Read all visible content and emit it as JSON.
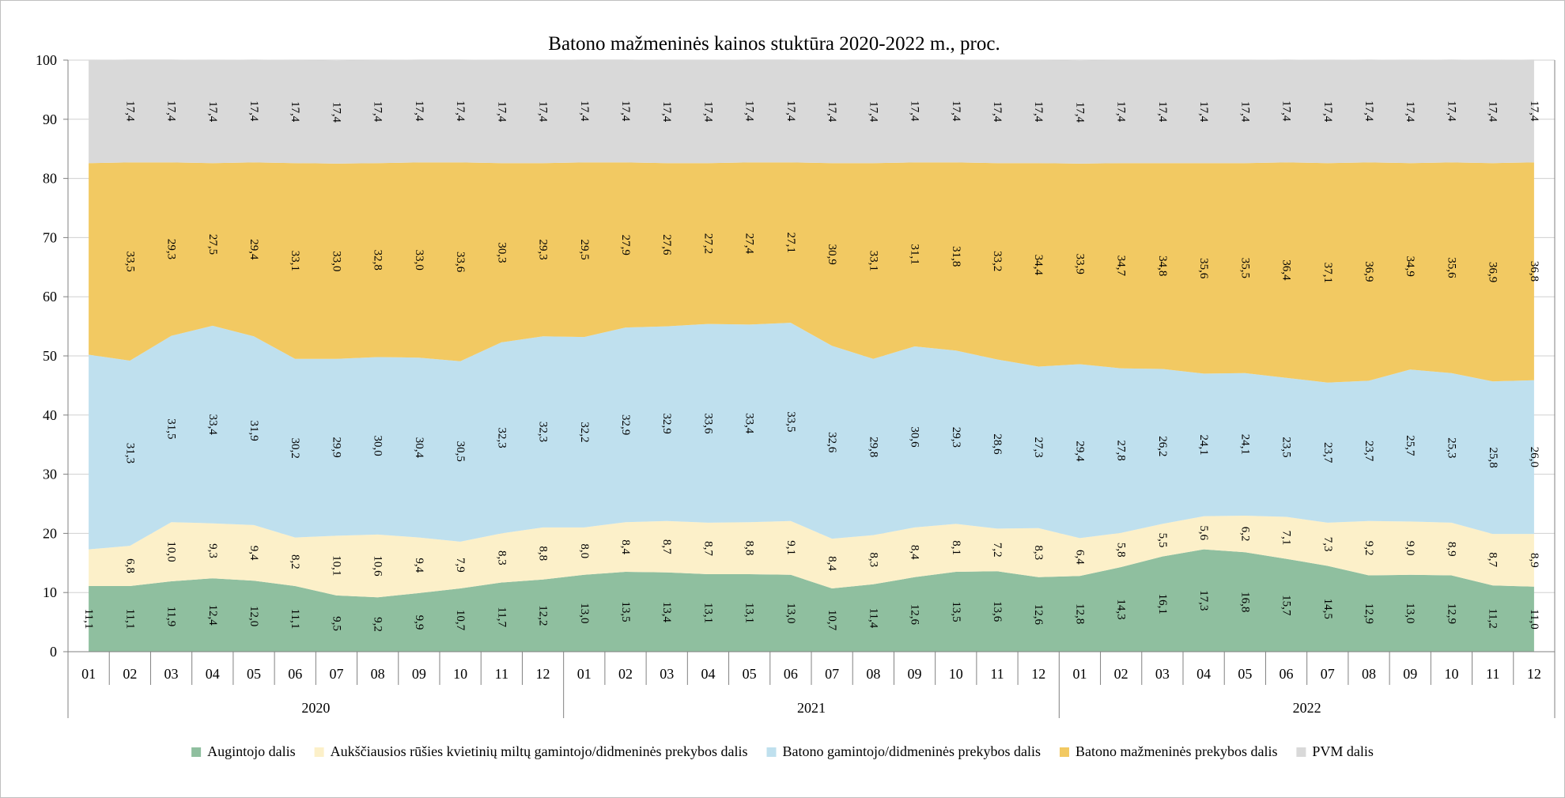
{
  "chart_data": {
    "type": "area",
    "stacked": true,
    "title": "Batono mažmeninės kainos stuktūra 2020-2022 m., proc.",
    "xlabel": "",
    "ylabel": "",
    "ylim": [
      0,
      100
    ],
    "yticks": [
      "0",
      "10",
      "20",
      "30",
      "40",
      "50",
      "60",
      "70",
      "80",
      "90",
      "100"
    ],
    "grid": true,
    "legend_position": "bottom",
    "months": [
      "01",
      "02",
      "03",
      "04",
      "05",
      "06",
      "07",
      "08",
      "09",
      "10",
      "11",
      "12",
      "01",
      "02",
      "03",
      "04",
      "05",
      "06",
      "07",
      "08",
      "09",
      "10",
      "11",
      "12",
      "01",
      "02",
      "03",
      "04",
      "05",
      "06",
      "07",
      "08",
      "09",
      "10",
      "11",
      "12"
    ],
    "years": [
      "2020",
      "2021",
      "2022"
    ],
    "series": [
      {
        "name": "Augintojo dalis",
        "color": "#8fbf9f",
        "values": [
          11.1,
          11.1,
          11.9,
          12.4,
          12.0,
          11.1,
          9.5,
          9.2,
          9.9,
          10.7,
          11.7,
          12.2,
          13.0,
          13.5,
          13.4,
          13.1,
          13.1,
          13.0,
          10.7,
          11.4,
          12.6,
          13.5,
          13.6,
          12.6,
          12.8,
          14.3,
          16.1,
          17.3,
          16.8,
          15.7,
          14.5,
          12.9,
          13.0,
          12.9,
          11.2,
          11.0
        ],
        "labels": [
          "11,1",
          "11,1",
          "11,9",
          "12,4",
          "12,0",
          "11,1",
          "9,5",
          "9,2",
          "9,9",
          "10,7",
          "11,7",
          "12,2",
          "13,0",
          "13,5",
          "13,4",
          "13,1",
          "13,1",
          "13,0",
          "10,7",
          "11,4",
          "12,6",
          "13,5",
          "13,6",
          "12,6",
          "12,8",
          "14,3",
          "16,1",
          "17,3",
          "16,8",
          "15,7",
          "14,5",
          "12,9",
          "13,0",
          "12,9",
          "11,2",
          "11,0"
        ]
      },
      {
        "name": "Aukščiausios rūšies kvietinių miltų gamintojo/didmeninės prekybos dalis",
        "color": "#fcf0c9",
        "values": [
          6.2,
          6.8,
          10.0,
          9.3,
          9.4,
          8.2,
          10.1,
          10.6,
          9.4,
          7.9,
          8.3,
          8.8,
          8.0,
          8.4,
          8.7,
          8.7,
          8.8,
          9.1,
          8.4,
          8.3,
          8.4,
          8.1,
          7.2,
          8.3,
          6.4,
          5.8,
          5.5,
          5.6,
          6.2,
          7.1,
          7.3,
          9.2,
          9.0,
          8.9,
          8.7,
          8.9
        ],
        "labels": [
          "",
          "6,8",
          "10,0",
          "9,3",
          "9,4",
          "8,2",
          "10,1",
          "10,6",
          "9,4",
          "7,9",
          "8,3",
          "8,8",
          "8,0",
          "8,4",
          "8,7",
          "8,7",
          "8,8",
          "9,1",
          "8,4",
          "8,3",
          "8,4",
          "8,1",
          "7,2",
          "8,3",
          "6,4",
          "5,8",
          "5,5",
          "5,6",
          "6,2",
          "7,1",
          "7,3",
          "9,2",
          "9,0",
          "8,9",
          "8,7",
          "8,9"
        ]
      },
      {
        "name": "Batono gamintojo/didmeninės prekybos dalis",
        "color": "#bfe0ee",
        "values": [
          32.9,
          31.3,
          31.5,
          33.4,
          31.9,
          30.2,
          29.9,
          30.0,
          30.4,
          30.5,
          32.3,
          32.3,
          32.2,
          32.9,
          32.9,
          33.6,
          33.4,
          33.5,
          32.6,
          29.8,
          30.6,
          29.3,
          28.6,
          27.3,
          29.4,
          27.8,
          26.2,
          24.1,
          24.1,
          23.5,
          23.7,
          23.7,
          25.7,
          25.3,
          25.8,
          26.0
        ],
        "labels": [
          "",
          "31,3",
          "31,5",
          "33,4",
          "31,9",
          "30,2",
          "29,9",
          "30,0",
          "30,4",
          "30,5",
          "32,3",
          "32,3",
          "32,2",
          "32,9",
          "32,9",
          "33,6",
          "33,4",
          "33,5",
          "32,6",
          "29,8",
          "30,6",
          "29,3",
          "28,6",
          "27,3",
          "29,4",
          "27,8",
          "26,2",
          "24,1",
          "24,1",
          "23,5",
          "23,7",
          "23,7",
          "25,7",
          "25,3",
          "25,8",
          "26,0"
        ]
      },
      {
        "name": "Batono mažmeninės prekybos dalis",
        "color": "#f2c962",
        "values": [
          32.4,
          33.5,
          29.3,
          27.5,
          29.4,
          33.1,
          33.0,
          32.8,
          33.0,
          33.6,
          30.3,
          29.3,
          29.5,
          27.9,
          27.6,
          27.2,
          27.4,
          27.1,
          30.9,
          33.1,
          31.1,
          31.8,
          33.2,
          34.4,
          33.9,
          34.7,
          34.8,
          35.6,
          35.5,
          36.4,
          37.1,
          36.9,
          34.9,
          35.6,
          36.9,
          36.8
        ],
        "labels": [
          "",
          "33,5",
          "29,3",
          "27,5",
          "29,4",
          "33,1",
          "33,0",
          "32,8",
          "33,0",
          "33,6",
          "30,3",
          "29,3",
          "29,5",
          "27,9",
          "27,6",
          "27,2",
          "27,4",
          "27,1",
          "30,9",
          "33,1",
          "31,1",
          "31,8",
          "33,2",
          "34,4",
          "33,9",
          "34,7",
          "34,8",
          "35,6",
          "35,5",
          "36,4",
          "37,1",
          "36,9",
          "34,9",
          "35,6",
          "36,9",
          "36,8"
        ]
      },
      {
        "name": "PVM dalis",
        "color": "#d9d9d9",
        "values": [
          17.4,
          17.4,
          17.4,
          17.4,
          17.4,
          17.4,
          17.4,
          17.4,
          17.4,
          17.4,
          17.4,
          17.4,
          17.4,
          17.4,
          17.4,
          17.4,
          17.4,
          17.4,
          17.4,
          17.4,
          17.4,
          17.4,
          17.4,
          17.4,
          17.4,
          17.4,
          17.4,
          17.4,
          17.4,
          17.4,
          17.4,
          17.4,
          17.4,
          17.4,
          17.4,
          17.4
        ],
        "labels": [
          "",
          "17,4",
          "17,4",
          "17,4",
          "17,4",
          "17,4",
          "17,4",
          "17,4",
          "17,4",
          "17,4",
          "17,4",
          "17,4",
          "17,4",
          "17,4",
          "17,4",
          "17,4",
          "17,4",
          "17,4",
          "17,4",
          "17,4",
          "17,4",
          "17,4",
          "17,4",
          "17,4",
          "17,4",
          "17,4",
          "17,4",
          "17,4",
          "17,4",
          "17,4",
          "17,4",
          "17,4",
          "17,4",
          "17,4",
          "17,4",
          "17,4"
        ]
      }
    ]
  }
}
